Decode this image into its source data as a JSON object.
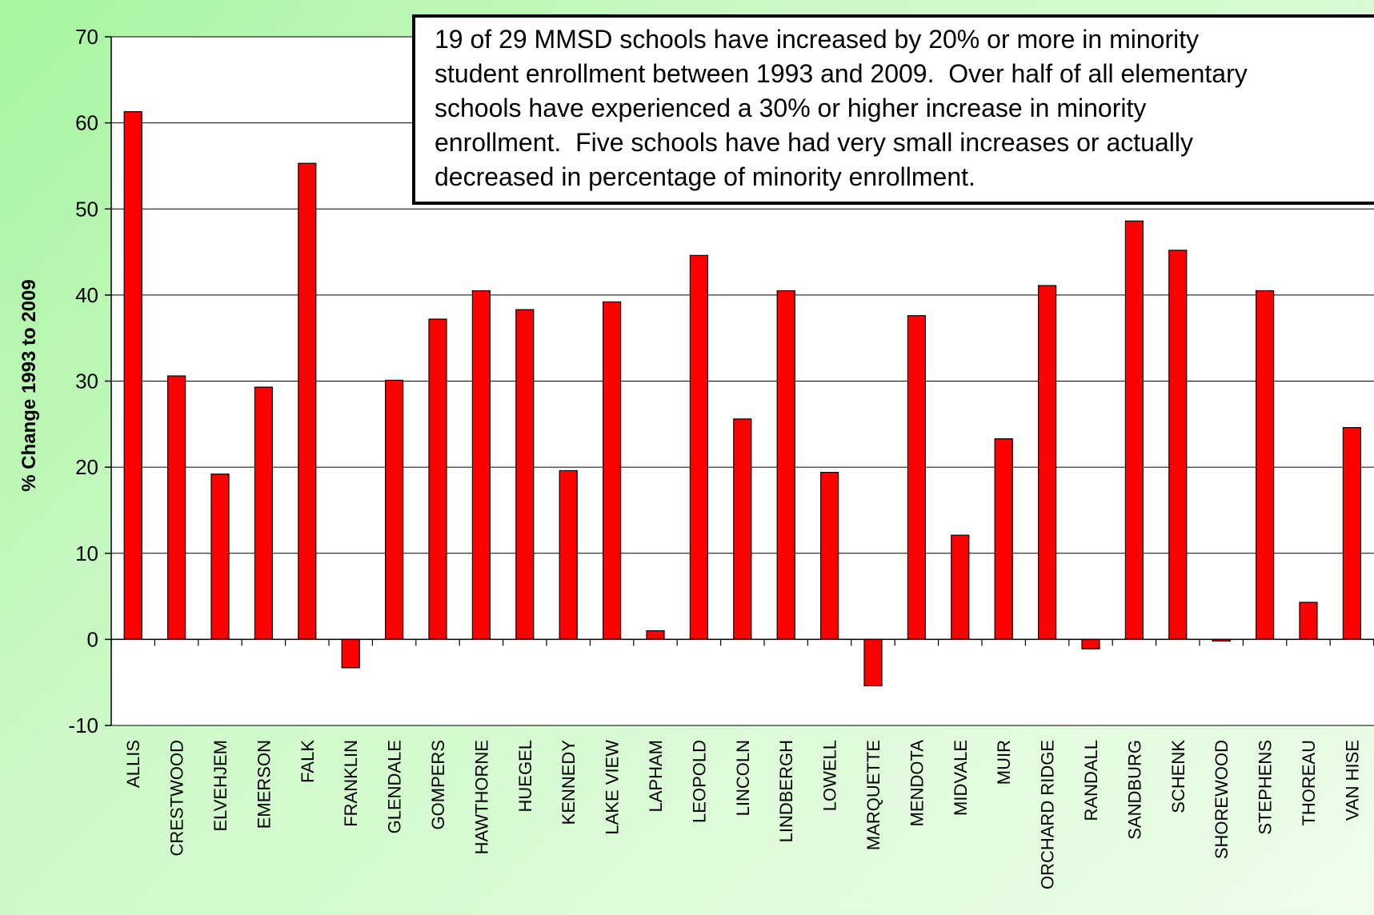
{
  "annotation": {
    "text": "19 of 29 MMSD schools have increased by 20% or more in minority\nstudent enrollment between 1993 and 2009.  Over half of all elementary\nschools have experienced a 30% or higher increase in minority\nenrollment.  Five schools have had very small increases or actually\ndecreased in percentage of minority enrollment."
  },
  "chart_data": {
    "type": "bar",
    "title": "",
    "xlabel": "",
    "ylabel": "% Change 1993 to 2009",
    "ylim": [
      -10,
      70
    ],
    "yticks": [
      -10,
      0,
      10,
      20,
      30,
      40,
      50,
      60,
      70
    ],
    "grid": true,
    "bar_color": "#ff0000",
    "categories": [
      "ALLIS",
      "CRESTWOOD",
      "ELVEHJEM",
      "EMERSON",
      "FALK",
      "FRANKLIN",
      "GLENDALE",
      "GOMPERS",
      "HAWTHORNE",
      "HUEGEL",
      "KENNEDY",
      "LAKE VIEW",
      "LAPHAM",
      "LEOPOLD",
      "LINCOLN",
      "LINDBERGH",
      "LOWELL",
      "MARQUETTE",
      "MENDOTA",
      "MIDVALE",
      "MUIR",
      "ORCHARD RIDGE",
      "RANDALL",
      "SANDBURG",
      "SCHENK",
      "SHOREWOOD",
      "STEPHENS",
      "THOREAU",
      "VAN HISE"
    ],
    "values": [
      61.3,
      30.6,
      19.2,
      29.3,
      55.3,
      -3.3,
      30.1,
      37.2,
      40.5,
      38.3,
      19.6,
      39.2,
      1.0,
      44.6,
      25.6,
      40.5,
      19.4,
      -5.4,
      37.6,
      12.1,
      23.3,
      41.1,
      -1.1,
      48.6,
      45.2,
      -0.2,
      40.5,
      4.3,
      24.6
    ]
  }
}
